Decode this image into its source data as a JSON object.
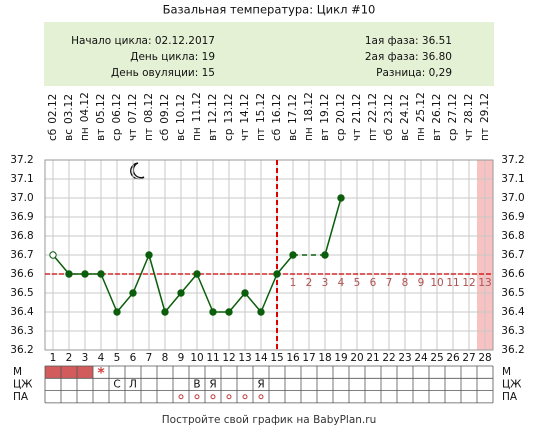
{
  "chart_data": {
    "type": "line",
    "title": "Базальная температура: Цикл #10",
    "info_left": [
      "Начало цикла: 02.12.2017",
      "День цикла: 19",
      "День овуляции: 15"
    ],
    "info_right": [
      "1ая фаза: 36.51",
      "2ая фаза: 36.80",
      "Разница: 0,29"
    ],
    "weekdays": [
      "сб",
      "вс",
      "пн",
      "вт",
      "ср",
      "чт",
      "пт",
      "сб",
      "вс",
      "пн",
      "вт",
      "ср",
      "чт",
      "пт",
      "сб",
      "вс",
      "пн",
      "вт",
      "ср",
      "чт",
      "пт",
      "сб",
      "вс",
      "пн",
      "вт",
      "ср",
      "чт",
      "пт"
    ],
    "dates": [
      "02.12",
      "03.12",
      "04.12",
      "05.12",
      "06.12",
      "07.12",
      "08.12",
      "09.12",
      "10.12",
      "11.12",
      "12.12",
      "13.12",
      "14.12",
      "15.12",
      "16.12",
      "17.12",
      "18.12",
      "19.12",
      "20.12",
      "21.12",
      "22.12",
      "23.12",
      "24.12",
      "25.12",
      "26.12",
      "27.12",
      "28.12",
      "29.12"
    ],
    "categories": [
      1,
      2,
      3,
      4,
      5,
      6,
      7,
      8,
      9,
      10,
      11,
      12,
      13,
      14,
      15,
      16,
      17,
      18,
      19,
      20,
      21,
      22,
      23,
      24,
      25,
      26,
      27,
      28
    ],
    "values": [
      36.7,
      36.6,
      36.6,
      36.6,
      36.4,
      36.5,
      36.7,
      36.4,
      36.5,
      36.6,
      36.4,
      36.4,
      36.5,
      36.4,
      36.6,
      36.7,
      null,
      36.7,
      37.0,
      null,
      null,
      null,
      null,
      null,
      null,
      null,
      null,
      null
    ],
    "color": "#0b5e0b",
    "hollow_days": [
      1
    ],
    "ylim": [
      36.2,
      37.2
    ],
    "yticks": [
      36.2,
      36.3,
      36.4,
      36.5,
      36.6,
      36.7,
      36.8,
      36.9,
      {
        "value": 37.0,
        "label": "37.0"
      },
      37.1,
      37.2
    ],
    "grid": true,
    "coverline": 36.6,
    "ovulation_day": 15,
    "phase2_labels": [
      1,
      2,
      3,
      4,
      5,
      6,
      7,
      8,
      9,
      10,
      11,
      12,
      13
    ],
    "highlight_day": 28,
    "row_labels": [
      "М",
      "ЦЖ",
      "ПА"
    ],
    "m_days": [
      1,
      2,
      3
    ],
    "m_marks": [
      {
        "day": 4,
        "label": "*"
      }
    ],
    "cm_marks": [
      {
        "day": 5,
        "label": "С"
      },
      {
        "day": 6,
        "label": "Л"
      },
      {
        "day": 10,
        "label": "В"
      },
      {
        "day": 11,
        "label": "Я"
      },
      {
        "day": 14,
        "label": "Я"
      }
    ],
    "pa_days": [
      9,
      10,
      11,
      12,
      13,
      14
    ],
    "footer": "Постройте свой график на BabyPlan.ru"
  }
}
